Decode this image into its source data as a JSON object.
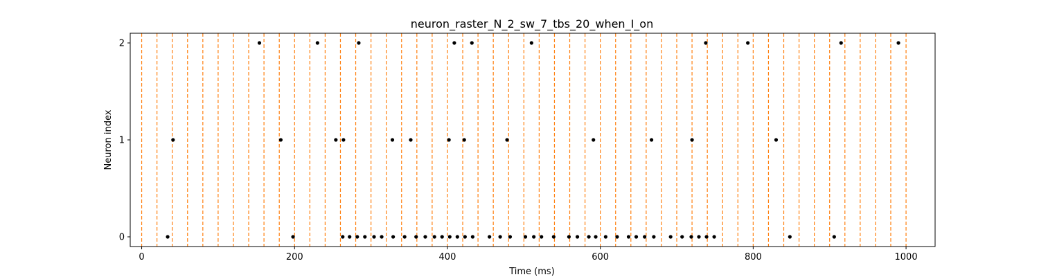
{
  "chart_data": {
    "type": "scatter",
    "title": "neuron_raster_N_2_sw_7_tbs_20_when_I_on",
    "xlabel": "Time (ms)",
    "ylabel": "Neuron index",
    "xlim": [
      -15,
      1038
    ],
    "ylim": [
      -0.1,
      2.1
    ],
    "x_ticks": [
      0,
      200,
      400,
      600,
      800,
      1000
    ],
    "y_ticks": [
      0,
      1,
      2
    ],
    "vlines": {
      "positions": [
        0,
        20,
        40,
        60,
        80,
        100,
        120,
        140,
        160,
        180,
        200,
        220,
        240,
        260,
        280,
        300,
        320,
        340,
        360,
        380,
        400,
        420,
        440,
        460,
        480,
        500,
        520,
        540,
        560,
        580,
        600,
        620,
        640,
        660,
        680,
        700,
        720,
        740,
        760,
        780,
        800,
        820,
        840,
        860,
        880,
        900,
        920,
        940,
        960,
        980,
        1000
      ],
      "color": "#ff7f0e",
      "style": "dashed"
    },
    "marker_color": "#000000",
    "series": [
      {
        "neuron": 0,
        "x": [
          34,
          198,
          263,
          272,
          282,
          292,
          304,
          314,
          329,
          344,
          359,
          371,
          383,
          393,
          403,
          413,
          423,
          433,
          455,
          469,
          482,
          502,
          513,
          523,
          539,
          559,
          570,
          585,
          594,
          607,
          622,
          637,
          647,
          658,
          670,
          692,
          707,
          719,
          729,
          739,
          749,
          848,
          906
        ]
      },
      {
        "neuron": 1,
        "x": [
          41,
          182,
          254,
          264,
          328,
          352,
          402,
          422,
          478,
          591,
          667,
          720,
          830
        ]
      },
      {
        "neuron": 2,
        "x": [
          154,
          230,
          284,
          409,
          432,
          510,
          738,
          793,
          915,
          990
        ]
      }
    ]
  }
}
